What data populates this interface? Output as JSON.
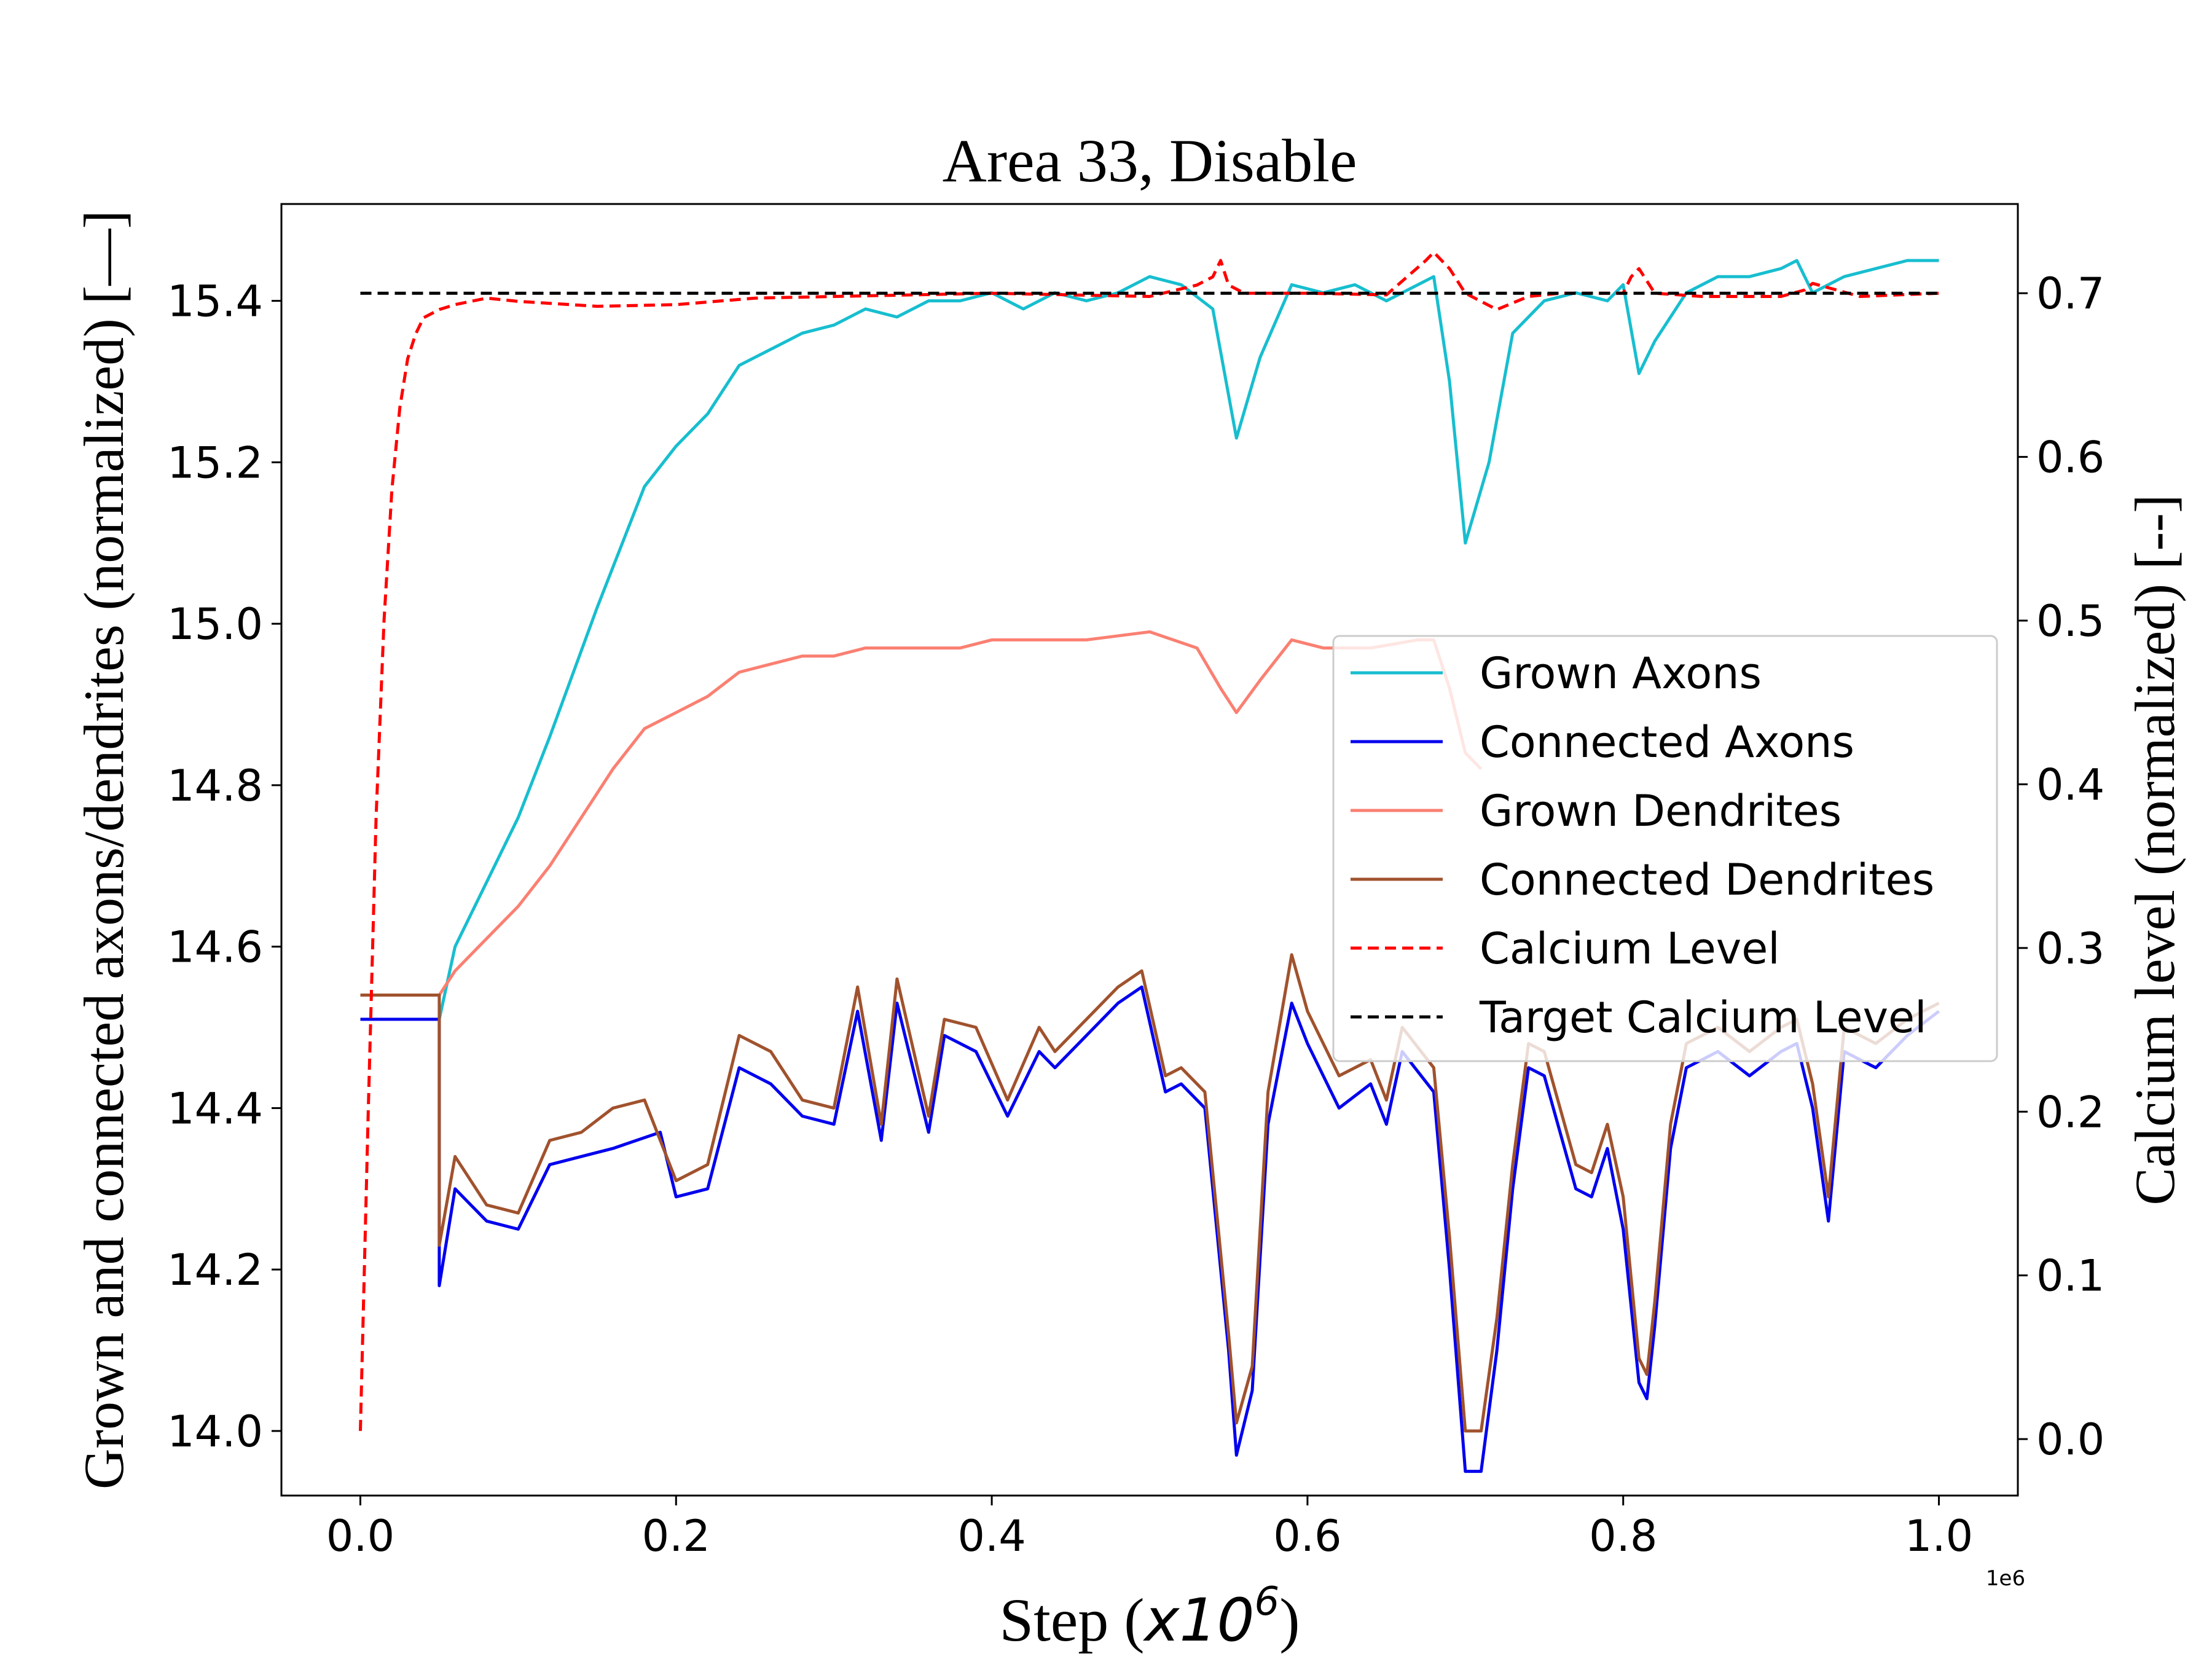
{
  "chart_data": {
    "type": "line",
    "title": "Area 33, Disable",
    "xlabel": "Step (",
    "xlabel_math": "x10",
    "xlabel_exp": "6",
    "xlabel_close": ")",
    "x_offset_text": "1e6",
    "ylabel_left": "Grown and connected axons/dendrites (normalized) [—]",
    "ylabel_right": "Calcium level (normalized) [--]",
    "xlim": [
      -0.05,
      1.05
    ],
    "ylim_left": [
      13.92,
      15.52
    ],
    "ylim_right": [
      -0.0345,
      0.7545
    ],
    "x_ticks": [
      0.0,
      0.2,
      0.4,
      0.6,
      0.8,
      1.0
    ],
    "x_tick_labels": [
      "0.0",
      "0.2",
      "0.4",
      "0.6",
      "0.8",
      "1.0"
    ],
    "y_left_ticks": [
      14.0,
      14.2,
      14.4,
      14.6,
      14.8,
      15.0,
      15.2,
      15.4
    ],
    "y_left_tick_labels": [
      "14.0",
      "14.2",
      "14.4",
      "14.6",
      "14.8",
      "15.0",
      "15.2",
      "15.4"
    ],
    "y_right_ticks": [
      0.0,
      0.1,
      0.2,
      0.3,
      0.4,
      0.5,
      0.6,
      0.7
    ],
    "y_right_tick_labels": [
      "0.0",
      "0.1",
      "0.2",
      "0.3",
      "0.4",
      "0.5",
      "0.6",
      "0.7"
    ],
    "grid": false,
    "legend_position": "center-right",
    "series": [
      {
        "name": "Grown Axons",
        "axis": "left",
        "color": "#17becf",
        "dash": "solid",
        "x": [
          0.05,
          0.06,
          0.08,
          0.1,
          0.12,
          0.15,
          0.18,
          0.2,
          0.22,
          0.24,
          0.26,
          0.28,
          0.3,
          0.32,
          0.34,
          0.36,
          0.38,
          0.4,
          0.42,
          0.44,
          0.46,
          0.48,
          0.5,
          0.52,
          0.54,
          0.555,
          0.57,
          0.59,
          0.61,
          0.63,
          0.65,
          0.67,
          0.68,
          0.69,
          0.7,
          0.715,
          0.73,
          0.75,
          0.77,
          0.79,
          0.8,
          0.81,
          0.82,
          0.84,
          0.86,
          0.88,
          0.9,
          0.91,
          0.92,
          0.94,
          0.96,
          0.98,
          1.0
        ],
        "y": [
          14.51,
          14.6,
          14.68,
          14.76,
          14.86,
          15.02,
          15.17,
          15.22,
          15.26,
          15.32,
          15.34,
          15.36,
          15.37,
          15.39,
          15.38,
          15.4,
          15.4,
          15.41,
          15.39,
          15.41,
          15.4,
          15.41,
          15.43,
          15.42,
          15.39,
          15.23,
          15.33,
          15.42,
          15.41,
          15.42,
          15.4,
          15.42,
          15.43,
          15.3,
          15.1,
          15.2,
          15.36,
          15.4,
          15.41,
          15.4,
          15.42,
          15.31,
          15.35,
          15.41,
          15.43,
          15.43,
          15.44,
          15.45,
          15.41,
          15.43,
          15.44,
          15.45,
          15.45
        ]
      },
      {
        "name": "Connected Axons",
        "axis": "left",
        "color": "#0000ee",
        "dash": "solid",
        "x": [
          0.0,
          0.05,
          0.05,
          0.06,
          0.08,
          0.1,
          0.12,
          0.14,
          0.16,
          0.19,
          0.2,
          0.22,
          0.24,
          0.26,
          0.28,
          0.3,
          0.315,
          0.33,
          0.34,
          0.36,
          0.37,
          0.39,
          0.41,
          0.43,
          0.44,
          0.46,
          0.48,
          0.495,
          0.51,
          0.52,
          0.535,
          0.54,
          0.55,
          0.555,
          0.565,
          0.575,
          0.59,
          0.6,
          0.62,
          0.64,
          0.65,
          0.66,
          0.68,
          0.69,
          0.7,
          0.71,
          0.72,
          0.73,
          0.74,
          0.75,
          0.77,
          0.78,
          0.79,
          0.8,
          0.81,
          0.815,
          0.82,
          0.83,
          0.84,
          0.86,
          0.88,
          0.9,
          0.91,
          0.92,
          0.93,
          0.94,
          0.96,
          0.98,
          1.0
        ],
        "y": [
          14.51,
          14.51,
          14.18,
          14.3,
          14.26,
          14.25,
          14.33,
          14.34,
          14.35,
          14.37,
          14.29,
          14.3,
          14.45,
          14.43,
          14.39,
          14.38,
          14.52,
          14.36,
          14.53,
          14.37,
          14.49,
          14.47,
          14.39,
          14.47,
          14.45,
          14.49,
          14.53,
          14.55,
          14.42,
          14.43,
          14.4,
          14.3,
          14.1,
          13.97,
          14.05,
          14.38,
          14.53,
          14.48,
          14.4,
          14.43,
          14.38,
          14.47,
          14.42,
          14.2,
          13.95,
          13.95,
          14.1,
          14.3,
          14.45,
          14.44,
          14.3,
          14.29,
          14.35,
          14.25,
          14.06,
          14.04,
          14.13,
          14.35,
          14.45,
          14.47,
          14.44,
          14.47,
          14.48,
          14.4,
          14.26,
          14.47,
          14.45,
          14.49,
          14.52
        ]
      },
      {
        "name": "Grown Dendrites",
        "axis": "left",
        "color": "#fa8072",
        "dash": "solid",
        "x": [
          0.05,
          0.06,
          0.08,
          0.1,
          0.12,
          0.14,
          0.16,
          0.18,
          0.2,
          0.22,
          0.24,
          0.26,
          0.28,
          0.3,
          0.32,
          0.35,
          0.38,
          0.4,
          0.43,
          0.46,
          0.5,
          0.53,
          0.545,
          0.555,
          0.57,
          0.59,
          0.61,
          0.64,
          0.67,
          0.68,
          0.69,
          0.7,
          0.71
        ],
        "y": [
          14.54,
          14.57,
          14.61,
          14.65,
          14.7,
          14.76,
          14.82,
          14.87,
          14.89,
          14.91,
          14.94,
          14.95,
          14.96,
          14.96,
          14.97,
          14.97,
          14.97,
          14.98,
          14.98,
          14.98,
          14.99,
          14.97,
          14.92,
          14.89,
          14.93,
          14.98,
          14.97,
          14.97,
          14.98,
          14.98,
          14.92,
          14.84,
          14.82
        ]
      },
      {
        "name": "Connected Dendrites",
        "axis": "left",
        "color": "#a0522d",
        "dash": "solid",
        "x": [
          0.0,
          0.05,
          0.05,
          0.06,
          0.08,
          0.1,
          0.12,
          0.14,
          0.16,
          0.18,
          0.2,
          0.22,
          0.24,
          0.26,
          0.28,
          0.3,
          0.315,
          0.33,
          0.34,
          0.36,
          0.37,
          0.39,
          0.41,
          0.43,
          0.44,
          0.46,
          0.48,
          0.495,
          0.51,
          0.52,
          0.535,
          0.54,
          0.55,
          0.555,
          0.565,
          0.575,
          0.59,
          0.6,
          0.62,
          0.64,
          0.65,
          0.66,
          0.68,
          0.69,
          0.7,
          0.71,
          0.72,
          0.73,
          0.74,
          0.75,
          0.77,
          0.78,
          0.79,
          0.8,
          0.81,
          0.815,
          0.82,
          0.83,
          0.84,
          0.86,
          0.88,
          0.9,
          0.91,
          0.92,
          0.93,
          0.94,
          0.96,
          0.98,
          1.0
        ],
        "y": [
          14.54,
          14.54,
          14.23,
          14.34,
          14.28,
          14.27,
          14.36,
          14.37,
          14.4,
          14.41,
          14.31,
          14.33,
          14.49,
          14.47,
          14.41,
          14.4,
          14.55,
          14.38,
          14.56,
          14.39,
          14.51,
          14.5,
          14.41,
          14.5,
          14.47,
          14.51,
          14.55,
          14.57,
          14.44,
          14.45,
          14.42,
          14.32,
          14.12,
          14.01,
          14.08,
          14.42,
          14.59,
          14.52,
          14.44,
          14.46,
          14.41,
          14.5,
          14.45,
          14.24,
          14.0,
          14.0,
          14.14,
          14.33,
          14.48,
          14.47,
          14.33,
          14.32,
          14.38,
          14.29,
          14.09,
          14.07,
          14.16,
          14.38,
          14.48,
          14.5,
          14.47,
          14.5,
          14.51,
          14.43,
          14.29,
          14.5,
          14.48,
          14.51,
          14.53
        ]
      },
      {
        "name": "Calcium Level",
        "axis": "right",
        "color": "#ff0000",
        "dash": "dashed",
        "x": [
          0.0,
          0.005,
          0.01,
          0.015,
          0.02,
          0.025,
          0.03,
          0.035,
          0.04,
          0.05,
          0.06,
          0.08,
          0.1,
          0.15,
          0.2,
          0.25,
          0.3,
          0.35,
          0.4,
          0.45,
          0.5,
          0.53,
          0.54,
          0.545,
          0.55,
          0.56,
          0.6,
          0.65,
          0.675,
          0.68,
          0.69,
          0.7,
          0.72,
          0.74,
          0.76,
          0.8,
          0.805,
          0.81,
          0.82,
          0.85,
          0.9,
          0.915,
          0.92,
          0.95,
          1.0
        ],
        "y": [
          0.005,
          0.2,
          0.38,
          0.5,
          0.58,
          0.63,
          0.66,
          0.675,
          0.685,
          0.69,
          0.693,
          0.697,
          0.695,
          0.692,
          0.693,
          0.697,
          0.698,
          0.699,
          0.7,
          0.699,
          0.698,
          0.705,
          0.71,
          0.72,
          0.705,
          0.7,
          0.7,
          0.699,
          0.72,
          0.725,
          0.715,
          0.7,
          0.69,
          0.698,
          0.7,
          0.7,
          0.71,
          0.715,
          0.7,
          0.698,
          0.698,
          0.702,
          0.706,
          0.698,
          0.7
        ]
      },
      {
        "name": "Target Calcium Level",
        "axis": "right",
        "color": "#000000",
        "dash": "dashed",
        "x": [
          0.0,
          1.0
        ],
        "y": [
          0.7,
          0.7
        ]
      }
    ]
  }
}
